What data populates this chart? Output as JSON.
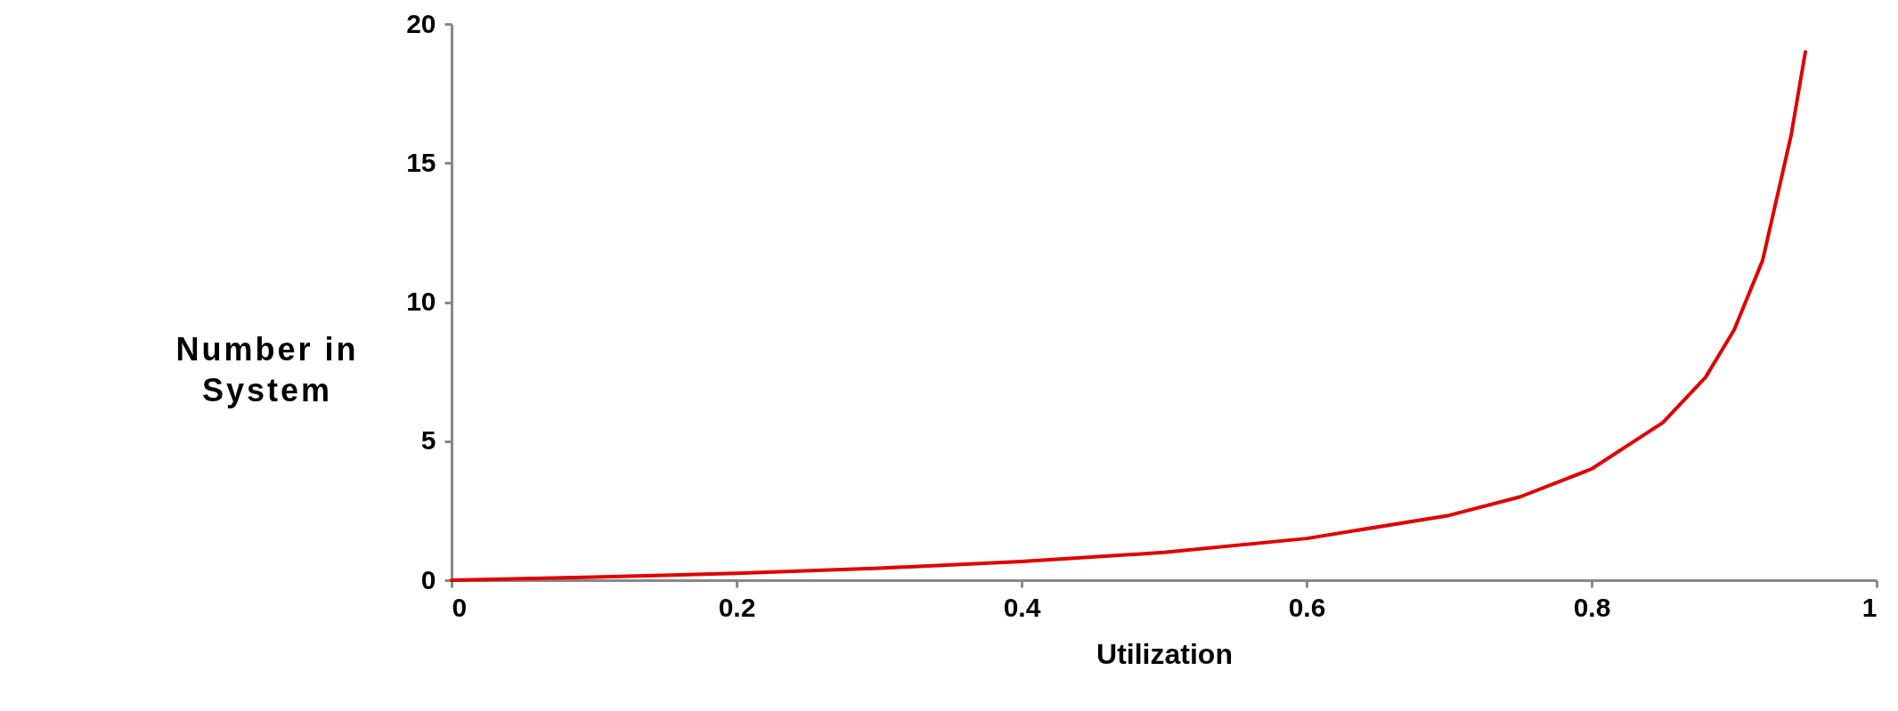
{
  "chart_data": {
    "type": "line",
    "xlabel": "Utilization",
    "ylabel": "Number in System",
    "x": [
      0,
      0.1,
      0.2,
      0.3,
      0.4,
      0.5,
      0.6,
      0.7,
      0.75,
      0.8,
      0.85,
      0.88,
      0.9,
      0.92,
      0.94,
      0.95
    ],
    "series": [
      {
        "color": "#e00000",
        "values": [
          0,
          0.11,
          0.25,
          0.43,
          0.67,
          1,
          1.5,
          2.33,
          3,
          4,
          5.67,
          7.3,
          9,
          11.5,
          16,
          19
        ]
      }
    ],
    "xlim": [
      0,
      1
    ],
    "xticks": [
      0,
      0.2,
      0.4,
      0.6,
      0.8,
      1
    ],
    "ylim": [
      0,
      20
    ],
    "yticks": [
      0,
      5,
      10,
      15,
      20
    ],
    "grid": false,
    "legend": false,
    "marker": "none",
    "line_style": "solid"
  }
}
